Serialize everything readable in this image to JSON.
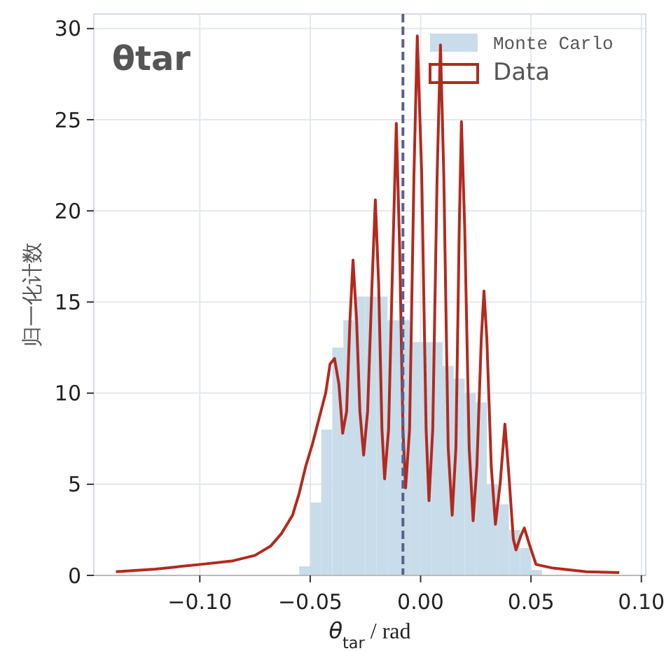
{
  "chart_data": {
    "type": "histogram",
    "title": "θtar",
    "xlabel": "θ$_{tar}$ / rad",
    "ylabel": "归一化计数",
    "xlim": [
      -0.148,
      0.102
    ],
    "ylim": [
      0,
      30.8
    ],
    "xticks": [
      {
        "value": -0.1,
        "label": "−0.10"
      },
      {
        "value": -0.05,
        "label": "−0.05"
      },
      {
        "value": 0,
        "label": "0.00"
      },
      {
        "value": 0.05,
        "label": "0.05"
      },
      {
        "value": 0.1,
        "label": "0.10"
      }
    ],
    "yticks": [
      0,
      5,
      10,
      15,
      20,
      25,
      30
    ],
    "grid": true,
    "legend": "top right",
    "ref_lines": [
      {
        "axis": "x",
        "value": -0.008,
        "color": "#5a5f8f",
        "line_style": "dashed"
      }
    ],
    "series": [
      {
        "name": "Monte Carlo",
        "color": "#c9dcea",
        "bins": [
          -0.06,
          -0.055,
          -0.05,
          -0.045,
          -0.04,
          -0.035,
          -0.03,
          -0.025,
          -0.02,
          -0.015,
          -0.01,
          -0.005,
          0,
          0.005,
          0.01,
          0.015,
          0.02,
          0.025,
          0.03,
          0.035,
          0.04,
          0.045,
          0.05,
          0.055
        ],
        "values": [
          0,
          0.5,
          4,
          8,
          12.5,
          14,
          15.3,
          15.3,
          15.3,
          14,
          14,
          12.8,
          12.8,
          12.8,
          11.5,
          10.8,
          10,
          9.5,
          5,
          3.9,
          2.5,
          1.5,
          0.3
        ]
      },
      {
        "name": "Data",
        "type": "line",
        "color": "#b22a1f",
        "x": [
          -0.138,
          -0.12,
          -0.1,
          -0.085,
          -0.075,
          -0.068,
          -0.063,
          -0.058,
          -0.055,
          -0.052,
          -0.049,
          -0.046,
          -0.043,
          -0.041,
          -0.039,
          -0.037,
          -0.0353,
          -0.0335,
          -0.032,
          -0.0306,
          -0.029,
          -0.0275,
          -0.0258,
          -0.024,
          -0.022,
          -0.0205,
          -0.019,
          -0.0175,
          -0.0163,
          -0.0145,
          -0.0125,
          -0.011,
          -0.0095,
          -0.008,
          -0.0068,
          -0.005,
          -0.003,
          -0.0015,
          0.0005,
          0.0025,
          0.0038,
          0.0055,
          0.0075,
          0.009,
          0.0105,
          0.0125,
          0.0143,
          0.016,
          0.0175,
          0.0185,
          0.02,
          0.022,
          0.0238,
          0.0255,
          0.0275,
          0.0287,
          0.03,
          0.032,
          0.0339,
          0.036,
          0.0382,
          0.04,
          0.042,
          0.0432,
          0.0455,
          0.047,
          0.049,
          0.0523,
          0.06,
          0.075,
          0.09
        ],
        "values": [
          0.2,
          0.35,
          0.6,
          0.8,
          1.1,
          1.6,
          2.3,
          3.3,
          4.5,
          6,
          7.2,
          8.6,
          10,
          11.6,
          11.9,
          10.5,
          7.8,
          9,
          14,
          17.3,
          14,
          9,
          6.6,
          9,
          16,
          20.6,
          16,
          8,
          5.3,
          8,
          18,
          24.8,
          18,
          8,
          4.8,
          8,
          22,
          29.6,
          22,
          8,
          4.1,
          8,
          22,
          29.1,
          22,
          7,
          3.3,
          7,
          19,
          24.9,
          19,
          7,
          3,
          6,
          13,
          15.6,
          13,
          6,
          2.8,
          5,
          8.3,
          5.5,
          2,
          1.4,
          2.2,
          2.6,
          1.8,
          0.6,
          0.4,
          0.2,
          0.15
        ]
      }
    ]
  }
}
